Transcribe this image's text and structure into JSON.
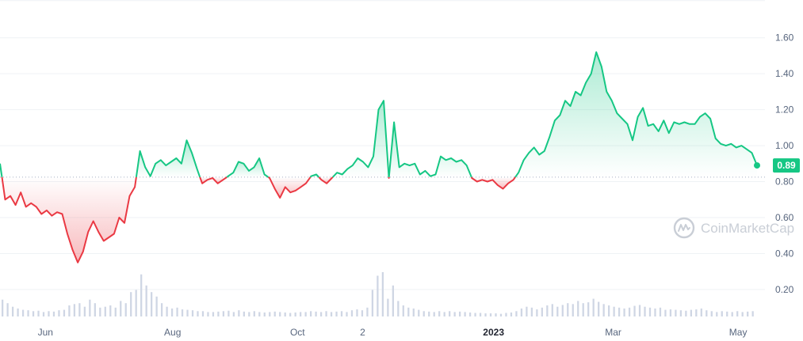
{
  "chart_data": {
    "type": "area",
    "y_ticks": [
      "0.20",
      "0.40",
      "0.60",
      "0.80",
      "1.00",
      "1.20",
      "1.40",
      "1.60"
    ],
    "x_ticks": [
      {
        "label": "Jun",
        "bold": false
      },
      {
        "label": "Aug",
        "bold": false
      },
      {
        "label": "Oct",
        "bold": false
      },
      {
        "label": "2",
        "bold": false
      },
      {
        "label": "2023",
        "bold": true
      },
      {
        "label": "Mar",
        "bold": false
      },
      {
        "label": "May",
        "bold": false
      }
    ],
    "ylim": [
      0.05,
      1.7
    ],
    "baseline": 0.825,
    "current_price_label": "0.89",
    "current_price": 0.89,
    "watermark": "CoinMarketCap",
    "colors": {
      "up": "#16c784",
      "down": "#ea3943",
      "volume": "#cfd6e4",
      "grid": "#eff2f5"
    },
    "series": [
      {
        "x": 0,
        "y": 0.9
      },
      {
        "x": 1,
        "y": 0.7
      },
      {
        "x": 2,
        "y": 0.72
      },
      {
        "x": 3,
        "y": 0.67
      },
      {
        "x": 4,
        "y": 0.74
      },
      {
        "x": 5,
        "y": 0.66
      },
      {
        "x": 6,
        "y": 0.68
      },
      {
        "x": 7,
        "y": 0.66
      },
      {
        "x": 8,
        "y": 0.62
      },
      {
        "x": 9,
        "y": 0.64
      },
      {
        "x": 10,
        "y": 0.61
      },
      {
        "x": 11,
        "y": 0.63
      },
      {
        "x": 12,
        "y": 0.62
      },
      {
        "x": 13,
        "y": 0.51
      },
      {
        "x": 14,
        "y": 0.42
      },
      {
        "x": 15,
        "y": 0.35
      },
      {
        "x": 16,
        "y": 0.41
      },
      {
        "x": 17,
        "y": 0.52
      },
      {
        "x": 18,
        "y": 0.58
      },
      {
        "x": 19,
        "y": 0.52
      },
      {
        "x": 20,
        "y": 0.47
      },
      {
        "x": 21,
        "y": 0.49
      },
      {
        "x": 22,
        "y": 0.51
      },
      {
        "x": 23,
        "y": 0.6
      },
      {
        "x": 24,
        "y": 0.57
      },
      {
        "x": 25,
        "y": 0.72
      },
      {
        "x": 26,
        "y": 0.77
      },
      {
        "x": 27,
        "y": 0.97
      },
      {
        "x": 28,
        "y": 0.88
      },
      {
        "x": 29,
        "y": 0.83
      },
      {
        "x": 30,
        "y": 0.9
      },
      {
        "x": 31,
        "y": 0.92
      },
      {
        "x": 32,
        "y": 0.89
      },
      {
        "x": 33,
        "y": 0.91
      },
      {
        "x": 34,
        "y": 0.93
      },
      {
        "x": 35,
        "y": 0.9
      },
      {
        "x": 36,
        "y": 1.03
      },
      {
        "x": 37,
        "y": 0.96
      },
      {
        "x": 38,
        "y": 0.87
      },
      {
        "x": 39,
        "y": 0.79
      },
      {
        "x": 40,
        "y": 0.81
      },
      {
        "x": 41,
        "y": 0.82
      },
      {
        "x": 42,
        "y": 0.79
      },
      {
        "x": 43,
        "y": 0.81
      },
      {
        "x": 44,
        "y": 0.83
      },
      {
        "x": 45,
        "y": 0.85
      },
      {
        "x": 46,
        "y": 0.91
      },
      {
        "x": 47,
        "y": 0.9
      },
      {
        "x": 48,
        "y": 0.86
      },
      {
        "x": 49,
        "y": 0.88
      },
      {
        "x": 50,
        "y": 0.93
      },
      {
        "x": 51,
        "y": 0.84
      },
      {
        "x": 52,
        "y": 0.82
      },
      {
        "x": 53,
        "y": 0.76
      },
      {
        "x": 54,
        "y": 0.71
      },
      {
        "x": 55,
        "y": 0.77
      },
      {
        "x": 56,
        "y": 0.74
      },
      {
        "x": 57,
        "y": 0.75
      },
      {
        "x": 58,
        "y": 0.77
      },
      {
        "x": 59,
        "y": 0.79
      },
      {
        "x": 60,
        "y": 0.83
      },
      {
        "x": 61,
        "y": 0.84
      },
      {
        "x": 62,
        "y": 0.81
      },
      {
        "x": 63,
        "y": 0.79
      },
      {
        "x": 64,
        "y": 0.82
      },
      {
        "x": 65,
        "y": 0.85
      },
      {
        "x": 66,
        "y": 0.84
      },
      {
        "x": 67,
        "y": 0.87
      },
      {
        "x": 68,
        "y": 0.89
      },
      {
        "x": 69,
        "y": 0.93
      },
      {
        "x": 70,
        "y": 0.91
      },
      {
        "x": 71,
        "y": 0.88
      },
      {
        "x": 72,
        "y": 0.94
      },
      {
        "x": 73,
        "y": 1.2
      },
      {
        "x": 74,
        "y": 1.25
      },
      {
        "x": 75,
        "y": 0.82
      },
      {
        "x": 76,
        "y": 1.13
      },
      {
        "x": 77,
        "y": 0.88
      },
      {
        "x": 78,
        "y": 0.9
      },
      {
        "x": 79,
        "y": 0.89
      },
      {
        "x": 80,
        "y": 0.9
      },
      {
        "x": 81,
        "y": 0.84
      },
      {
        "x": 82,
        "y": 0.86
      },
      {
        "x": 83,
        "y": 0.83
      },
      {
        "x": 84,
        "y": 0.84
      },
      {
        "x": 85,
        "y": 0.94
      },
      {
        "x": 86,
        "y": 0.92
      },
      {
        "x": 87,
        "y": 0.93
      },
      {
        "x": 88,
        "y": 0.91
      },
      {
        "x": 89,
        "y": 0.92
      },
      {
        "x": 90,
        "y": 0.89
      },
      {
        "x": 91,
        "y": 0.82
      },
      {
        "x": 92,
        "y": 0.8
      },
      {
        "x": 93,
        "y": 0.81
      },
      {
        "x": 94,
        "y": 0.8
      },
      {
        "x": 95,
        "y": 0.81
      },
      {
        "x": 96,
        "y": 0.78
      },
      {
        "x": 97,
        "y": 0.76
      },
      {
        "x": 98,
        "y": 0.79
      },
      {
        "x": 99,
        "y": 0.81
      },
      {
        "x": 100,
        "y": 0.85
      },
      {
        "x": 101,
        "y": 0.92
      },
      {
        "x": 102,
        "y": 0.96
      },
      {
        "x": 103,
        "y": 0.99
      },
      {
        "x": 104,
        "y": 0.95
      },
      {
        "x": 105,
        "y": 0.97
      },
      {
        "x": 106,
        "y": 1.05
      },
      {
        "x": 107,
        "y": 1.14
      },
      {
        "x": 108,
        "y": 1.17
      },
      {
        "x": 109,
        "y": 1.25
      },
      {
        "x": 110,
        "y": 1.22
      },
      {
        "x": 111,
        "y": 1.3
      },
      {
        "x": 112,
        "y": 1.28
      },
      {
        "x": 113,
        "y": 1.35
      },
      {
        "x": 114,
        "y": 1.4
      },
      {
        "x": 115,
        "y": 1.52
      },
      {
        "x": 116,
        "y": 1.44
      },
      {
        "x": 117,
        "y": 1.3
      },
      {
        "x": 118,
        "y": 1.25
      },
      {
        "x": 119,
        "y": 1.18
      },
      {
        "x": 120,
        "y": 1.15
      },
      {
        "x": 121,
        "y": 1.12
      },
      {
        "x": 122,
        "y": 1.03
      },
      {
        "x": 123,
        "y": 1.16
      },
      {
        "x": 124,
        "y": 1.21
      },
      {
        "x": 125,
        "y": 1.11
      },
      {
        "x": 126,
        "y": 1.12
      },
      {
        "x": 127,
        "y": 1.08
      },
      {
        "x": 128,
        "y": 1.14
      },
      {
        "x": 129,
        "y": 1.07
      },
      {
        "x": 130,
        "y": 1.13
      },
      {
        "x": 131,
        "y": 1.12
      },
      {
        "x": 132,
        "y": 1.13
      },
      {
        "x": 133,
        "y": 1.12
      },
      {
        "x": 134,
        "y": 1.12
      },
      {
        "x": 135,
        "y": 1.16
      },
      {
        "x": 136,
        "y": 1.18
      },
      {
        "x": 137,
        "y": 1.15
      },
      {
        "x": 138,
        "y": 1.04
      },
      {
        "x": 139,
        "y": 1.01
      },
      {
        "x": 140,
        "y": 1.0
      },
      {
        "x": 141,
        "y": 1.01
      },
      {
        "x": 142,
        "y": 0.99
      },
      {
        "x": 143,
        "y": 1.0
      },
      {
        "x": 144,
        "y": 0.98
      },
      {
        "x": 145,
        "y": 0.96
      },
      {
        "x": 146,
        "y": 0.89
      }
    ],
    "volume": [
      0.38,
      0.3,
      0.22,
      0.18,
      0.15,
      0.14,
      0.12,
      0.13,
      0.1,
      0.12,
      0.11,
      0.14,
      0.15,
      0.25,
      0.28,
      0.3,
      0.22,
      0.38,
      0.3,
      0.2,
      0.22,
      0.25,
      0.2,
      0.35,
      0.3,
      0.55,
      0.6,
      0.95,
      0.7,
      0.55,
      0.45,
      0.3,
      0.22,
      0.18,
      0.2,
      0.16,
      0.15,
      0.14,
      0.12,
      0.12,
      0.1,
      0.1,
      0.11,
      0.12,
      0.13,
      0.1,
      0.14,
      0.11,
      0.1,
      0.12,
      0.1,
      0.09,
      0.1,
      0.11,
      0.1,
      0.09,
      0.08,
      0.09,
      0.1,
      0.1,
      0.12,
      0.11,
      0.1,
      0.12,
      0.1,
      0.11,
      0.12,
      0.1,
      0.14,
      0.16,
      0.14,
      0.2,
      0.6,
      0.92,
      1.0,
      0.4,
      0.7,
      0.35,
      0.25,
      0.2,
      0.18,
      0.15,
      0.12,
      0.11,
      0.1,
      0.12,
      0.1,
      0.12,
      0.1,
      0.11,
      0.1,
      0.09,
      0.08,
      0.08,
      0.07,
      0.07,
      0.07,
      0.06,
      0.08,
      0.09,
      0.12,
      0.18,
      0.22,
      0.2,
      0.16,
      0.2,
      0.25,
      0.28,
      0.22,
      0.26,
      0.3,
      0.28,
      0.35,
      0.3,
      0.32,
      0.4,
      0.33,
      0.28,
      0.25,
      0.22,
      0.2,
      0.18,
      0.2,
      0.24,
      0.26,
      0.22,
      0.2,
      0.18,
      0.2,
      0.15,
      0.16,
      0.15,
      0.14,
      0.13,
      0.15,
      0.16,
      0.18,
      0.14,
      0.12,
      0.1,
      0.12,
      0.11,
      0.1,
      0.12,
      0.1,
      0.11,
      0.12
    ]
  }
}
